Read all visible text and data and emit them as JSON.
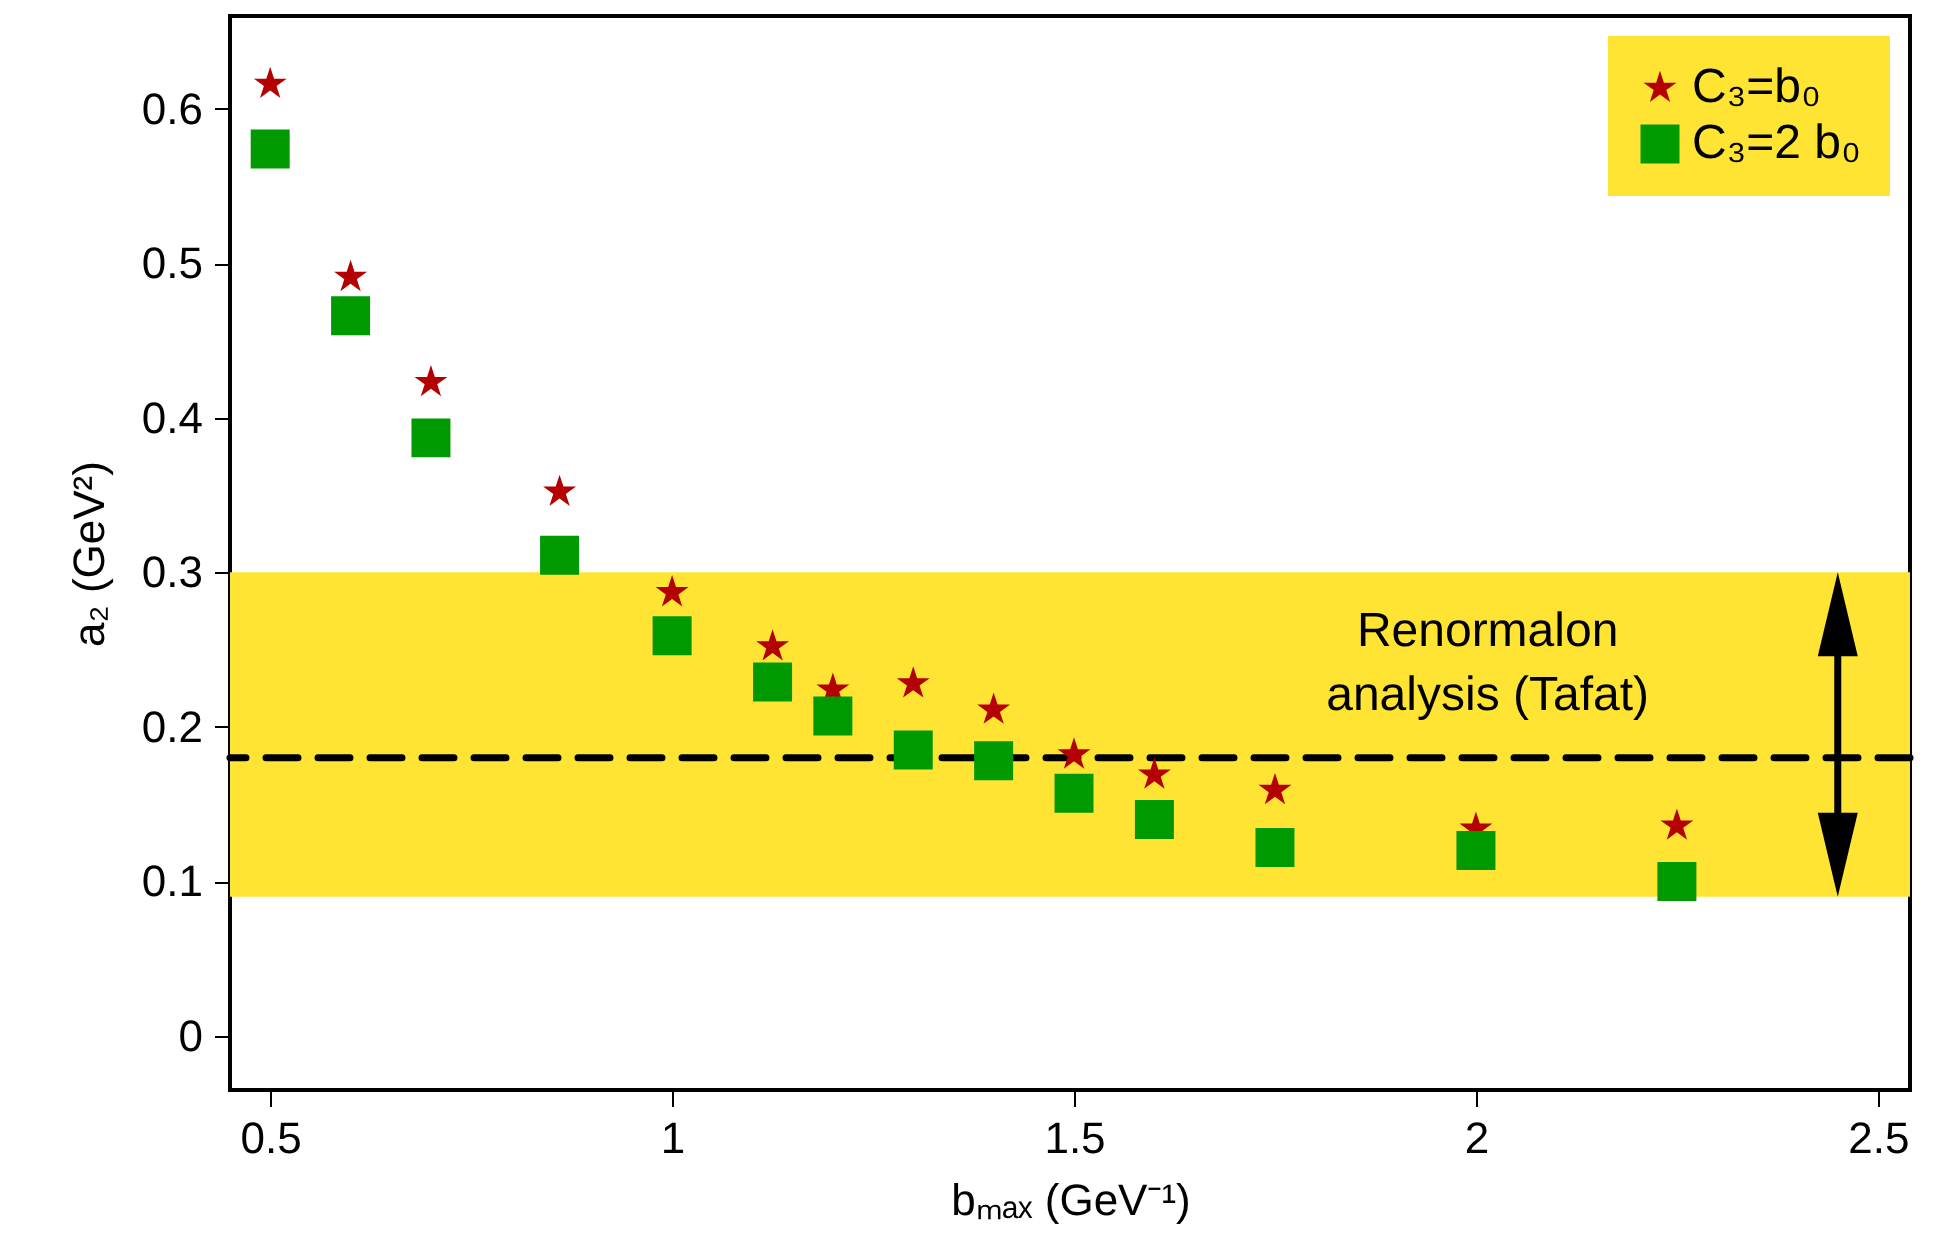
{
  "chart_data": {
    "type": "scatter",
    "xlabel": "bₘₐₓ (GeV⁻¹)",
    "ylabel": "a₂ (GeV²)",
    "x": [
      0.5,
      0.6,
      0.7,
      0.86,
      1.0,
      1.125,
      1.2,
      1.3,
      1.4,
      1.5,
      1.6,
      1.75,
      2.0,
      2.25
    ],
    "series": [
      {
        "name": "C₃=b₀",
        "color": "#b40000",
        "marker": "star",
        "values": [
          0.616,
          0.491,
          0.423,
          0.352,
          0.287,
          0.252,
          0.224,
          0.228,
          0.211,
          0.182,
          0.169,
          0.159,
          0.134,
          0.136
        ]
      },
      {
        "name": "C₃=2 b₀",
        "color": "#009900",
        "marker": "square",
        "values": [
          0.574,
          0.466,
          0.387,
          0.311,
          0.259,
          0.229,
          0.207,
          0.185,
          0.178,
          0.157,
          0.14,
          0.122,
          0.12,
          0.1
        ]
      }
    ],
    "xlim": [
      0.45,
      2.54
    ],
    "ylim": [
      -0.035,
      0.66
    ],
    "xticks": [
      0.5,
      1,
      1.5,
      2,
      2.5
    ],
    "yticks": [
      0,
      0.1,
      0.2,
      0.3,
      0.4,
      0.5,
      0.6
    ],
    "bands": [
      {
        "axis": "y",
        "from": 0.09,
        "to": 0.3,
        "label": "Renormalon analysis (Tafat)",
        "color": "#ffe433"
      }
    ],
    "ref_lines": [
      {
        "axis": "y",
        "value": 0.18,
        "color": "#000000",
        "line_style": "dashed"
      }
    ],
    "legend": "top right",
    "grid": false
  }
}
